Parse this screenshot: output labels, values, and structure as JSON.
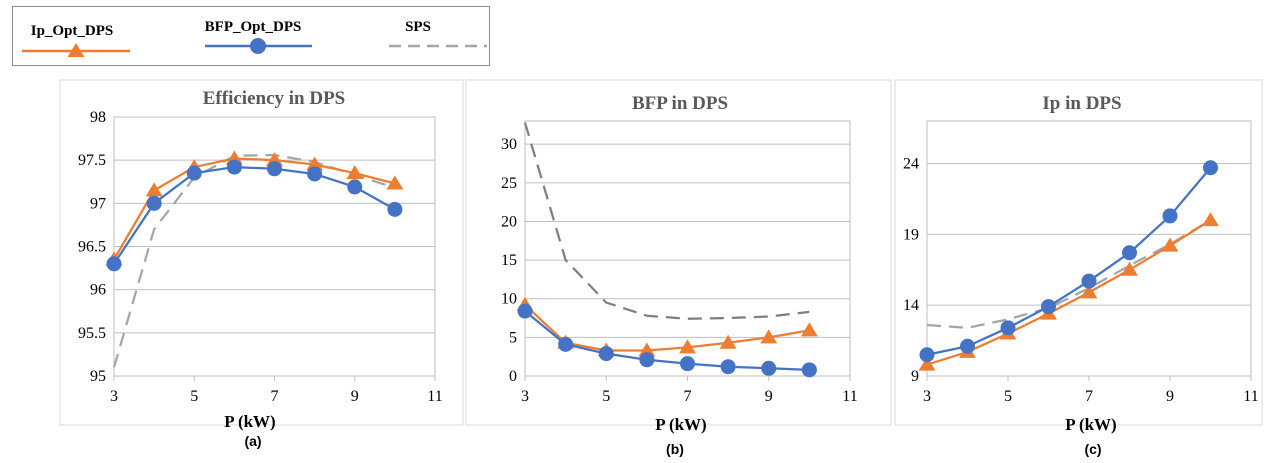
{
  "colors": {
    "ip": "#ED7D31",
    "bfp": "#4472C4",
    "sps": "#A5A5A5",
    "sps_bfp": "#7F7F7F",
    "axis": "#BFBFBF"
  },
  "legend": {
    "items": [
      {
        "label": "Ip_Opt_DPS",
        "marker": "triangle"
      },
      {
        "label": "BFP_Opt_DPS",
        "marker": "circle"
      },
      {
        "label": "SPS",
        "marker": "none"
      }
    ]
  },
  "chart_data": [
    {
      "type": "line",
      "title": "Efficiency in DPS",
      "xlabel": "P (kW)",
      "caption": "(a)",
      "xlim": [
        3,
        11
      ],
      "xticks": [
        3,
        5,
        7,
        9,
        11
      ],
      "ylim": [
        95,
        98
      ],
      "yticks": [
        95,
        95.5,
        96,
        96.5,
        97,
        97.5,
        98
      ],
      "grid": "horizontal",
      "x": [
        3,
        4,
        5,
        6,
        7,
        8,
        9,
        10
      ],
      "series": [
        {
          "name": "Ip_Opt_DPS",
          "values": [
            96.35,
            97.15,
            97.42,
            97.52,
            97.5,
            97.45,
            97.35,
            97.23
          ]
        },
        {
          "name": "BFP_Opt_DPS",
          "values": [
            96.3,
            97.0,
            97.35,
            97.42,
            97.4,
            97.34,
            97.19,
            96.93
          ]
        },
        {
          "name": "SPS",
          "values": [
            95.1,
            96.7,
            97.3,
            97.55,
            97.56,
            97.48,
            97.33,
            97.18
          ]
        }
      ]
    },
    {
      "type": "line",
      "title": "BFP in DPS",
      "xlabel": "P (kW)",
      "caption": "(b)",
      "xlim": [
        3,
        11
      ],
      "xticks": [
        3,
        5,
        7,
        9,
        11
      ],
      "ylim": [
        0,
        33
      ],
      "yticks": [
        0,
        5,
        10,
        15,
        20,
        25,
        30
      ],
      "grid": "horizontal",
      "x": [
        3,
        4,
        5,
        6,
        7,
        8,
        9,
        10
      ],
      "series": [
        {
          "name": "Ip_Opt_DPS",
          "values": [
            9.2,
            4.3,
            3.3,
            3.3,
            3.7,
            4.3,
            5.0,
            5.9
          ]
        },
        {
          "name": "BFP_Opt_DPS",
          "values": [
            8.4,
            4.1,
            2.9,
            2.1,
            1.6,
            1.2,
            1.0,
            0.8
          ]
        },
        {
          "name": "SPS",
          "values": [
            32.8,
            15.0,
            9.5,
            7.8,
            7.4,
            7.5,
            7.7,
            8.3
          ]
        }
      ]
    },
    {
      "type": "line",
      "title": "Ip in DPS",
      "xlabel": "P (kW)",
      "caption": "(c)",
      "xlim": [
        3,
        11
      ],
      "xticks": [
        3,
        5,
        7,
        9,
        11
      ],
      "ylim": [
        9,
        27
      ],
      "yticks": [
        9,
        14,
        19,
        24
      ],
      "grid": "horizontal",
      "x": [
        3,
        4,
        5,
        6,
        7,
        8,
        9,
        10
      ],
      "series": [
        {
          "name": "Ip_Opt_DPS",
          "values": [
            9.8,
            10.7,
            12.0,
            13.4,
            14.9,
            16.5,
            18.2,
            20.0
          ]
        },
        {
          "name": "BFP_Opt_DPS",
          "values": [
            10.5,
            11.1,
            12.4,
            13.9,
            15.7,
            17.7,
            20.3,
            23.7
          ]
        },
        {
          "name": "SPS",
          "values": [
            12.6,
            12.4,
            13.0,
            13.8,
            15.2,
            16.8,
            18.3,
            20.0
          ]
        }
      ]
    }
  ]
}
